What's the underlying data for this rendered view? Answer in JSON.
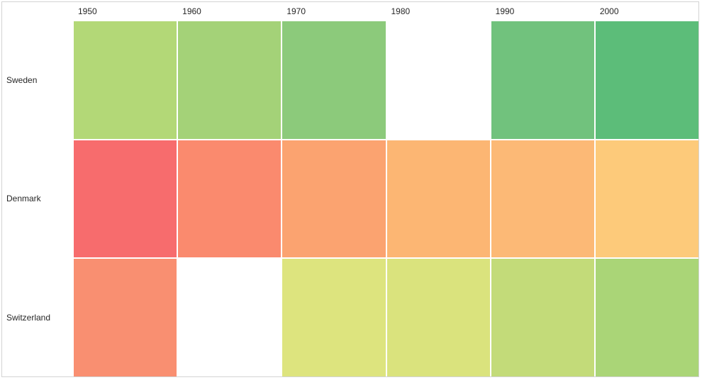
{
  "chart_data": {
    "type": "heatmap",
    "title": "",
    "xlabel": "",
    "ylabel": "",
    "x_categories": [
      "1950",
      "1960",
      "1970",
      "1980",
      "1990",
      "2000"
    ],
    "y_categories": [
      "Sweden",
      "Denmark",
      "Switzerland"
    ],
    "cell_colors": [
      [
        "#b3d877",
        "#a4d278",
        "#8cca7b",
        null,
        "#71c27d",
        "#5cbd79"
      ],
      [
        "#f76c6d",
        "#fa8a6e",
        "#fba370",
        "#fcb673",
        "#fcb976",
        "#fdca7a"
      ],
      [
        "#f98f71",
        null,
        "#dde47e",
        "#dae37d",
        "#c3db79",
        "#aad577"
      ]
    ],
    "missing_cells": [
      [
        "Sweden",
        "1980"
      ],
      [
        "Switzerland",
        "1960"
      ]
    ],
    "colormap": "red-yellow-green-diverging",
    "legend": "none",
    "grid_line_color": "#ffffff",
    "border_color": "#d3d3d3",
    "label_color": "#262626"
  }
}
